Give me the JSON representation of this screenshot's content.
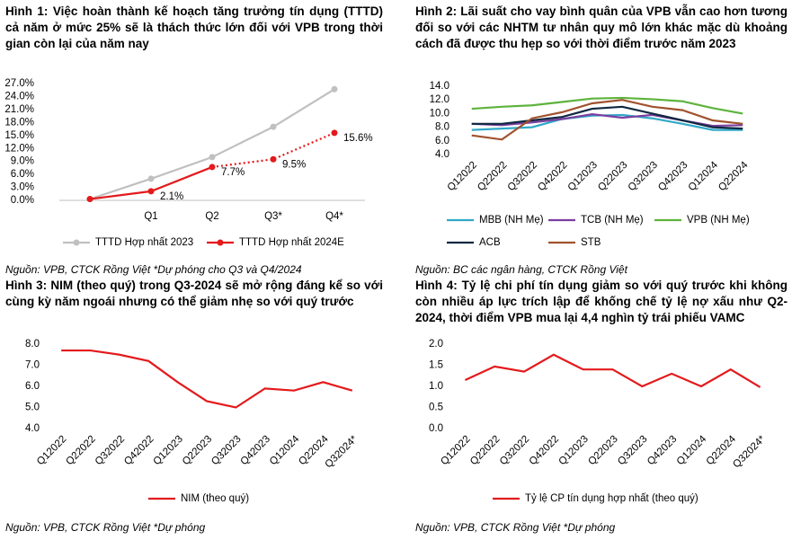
{
  "chart_data": [
    {
      "type": "line",
      "title": "Hình 1: Việc hoàn thành kế hoạch tăng trưởng tín dụng (TTTD) cả năm ở mức 25% sẽ là thách thức lớn đối với VPB trong thời gian còn lại của năm nay",
      "source": "Nguồn: VPB, CTCK Rồng Việt *Dự phóng cho Q3 và Q4/2024",
      "categories": [
        null,
        "Q1",
        "Q2",
        "Q3*",
        "Q4*"
      ],
      "series": [
        {
          "name": "TTTD Hợp nhất 2023",
          "color": "#c0c0c0",
          "values": [
            0.3,
            5.0,
            10.0,
            17.0,
            25.7
          ]
        },
        {
          "name": "TTTD Hợp nhất 2024E",
          "color": "#e31a1c",
          "values": [
            0.3,
            2.1,
            7.7,
            9.5,
            15.6
          ],
          "value_labels": [
            null,
            "2.1%",
            "7.7%",
            "9.5%",
            "15.6%"
          ],
          "dotted_from": 2
        }
      ],
      "ylim": [
        0,
        27
      ],
      "yticks": [
        {
          "value": 0,
          "label": "0.0%"
        },
        {
          "value": 3,
          "label": "3.0%"
        },
        {
          "value": 6,
          "label": "6.0%"
        },
        {
          "value": 9,
          "label": "9.0%"
        },
        {
          "value": 12,
          "label": "12.0%"
        },
        {
          "value": 15,
          "label": "15.0%"
        },
        {
          "value": 18,
          "label": "18.0%"
        },
        {
          "value": 21,
          "label": "21.0%"
        },
        {
          "value": 24,
          "label": "24.0%"
        },
        {
          "value": 27,
          "label": "27.0%"
        }
      ],
      "markers": true
    },
    {
      "type": "line",
      "title": "Hình 2: Lãi suất cho vay bình quân của VPB vẫn cao hơn tương đối so với các NHTM tư nhân quy mô lớn khác mặc dù khoảng cách đã được thu hẹp so với thời điểm trước năm 2023",
      "source": "Nguồn: BC các ngân hàng, CTCK Rồng Việt",
      "categories": [
        "Q12022",
        "Q22022",
        "Q32022",
        "Q42022",
        "Q12023",
        "Q22023",
        "Q32023",
        "Q42023",
        "Q12024",
        "Q22024"
      ],
      "series": [
        {
          "name": "MBB (NH Mẹ)",
          "color": "#31a9c9",
          "values": [
            7.6,
            7.8,
            8.0,
            9.2,
            9.7,
            9.8,
            9.3,
            8.5,
            7.6,
            7.6
          ]
        },
        {
          "name": "TCB (NH Mẹ)",
          "color": "#7a3fa0",
          "values": [
            8.5,
            8.3,
            8.7,
            9.2,
            9.9,
            9.4,
            9.8,
            9.0,
            8.2,
            8.3
          ]
        },
        {
          "name": "VPB (NH Mẹ)",
          "color": "#5db33c",
          "values": [
            10.7,
            11.0,
            11.2,
            11.7,
            12.2,
            12.3,
            12.1,
            11.8,
            10.8,
            10.0
          ]
        },
        {
          "name": "ACB",
          "color": "#0e2841",
          "values": [
            8.5,
            8.5,
            9.0,
            9.5,
            10.7,
            11.0,
            10.0,
            9.0,
            8.0,
            7.8
          ]
        },
        {
          "name": "STB",
          "color": "#a0522d",
          "values": [
            6.8,
            6.2,
            9.3,
            10.2,
            11.5,
            12.0,
            11.0,
            10.5,
            9.0,
            8.5
          ]
        }
      ],
      "ylim": [
        4,
        14
      ],
      "yticks": [
        {
          "value": 4,
          "label": "4.0"
        },
        {
          "value": 6,
          "label": "6.0"
        },
        {
          "value": 8,
          "label": "8.0"
        },
        {
          "value": 10,
          "label": "10.0"
        },
        {
          "value": 12,
          "label": "12.0"
        },
        {
          "value": 14,
          "label": "14.0"
        }
      ]
    },
    {
      "type": "line",
      "title": "Hình 3: NIM (theo quý) trong Q3-2024 sẽ mở rộng đáng kể so với cùng kỳ năm ngoái nhưng có thể giảm nhẹ so với quý trước",
      "source": "Nguồn: VPB, CTCK Rồng Việt *Dự phóng",
      "categories": [
        "Q12022",
        "Q22022",
        "Q32022",
        "Q42022",
        "Q12023",
        "Q22023",
        "Q32023",
        "Q42023",
        "Q12024",
        "Q22024",
        "Q32024*"
      ],
      "series": [
        {
          "name": "NIM (theo quý)",
          "color": "#e31a1c",
          "values": [
            7.7,
            7.7,
            7.5,
            7.2,
            6.2,
            5.3,
            5.0,
            5.9,
            5.8,
            6.2,
            5.8
          ]
        }
      ],
      "ylim": [
        4,
        8
      ],
      "yticks": [
        {
          "value": 4,
          "label": "4.0"
        },
        {
          "value": 5,
          "label": "5.0"
        },
        {
          "value": 6,
          "label": "6.0"
        },
        {
          "value": 7,
          "label": "7.0"
        },
        {
          "value": 8,
          "label": "8.0"
        }
      ]
    },
    {
      "type": "line",
      "title": "Hình 4: Tỷ lệ chi phí tín dụng giảm so với quý trước khi không còn nhiều áp lực trích lập để khống chế tỷ lệ nợ xấu như Q2-2024, thời điểm VPB mua lại 4,4 nghìn tỷ trái phiếu VAMC",
      "source": "Nguồn: VPB, CTCK Rồng Việt *Dự phóng",
      "categories": [
        "Q12022",
        "Q22022",
        "Q32022",
        "Q42022",
        "Q12023",
        "Q22023",
        "Q32023",
        "Q42023",
        "Q12024",
        "Q22024",
        "Q32024*"
      ],
      "series": [
        {
          "name": "Tỷ lệ CP tín dụng hợp nhất (theo quý)",
          "color": "#e31a1c",
          "values": [
            1.15,
            1.47,
            1.35,
            1.75,
            1.4,
            1.4,
            1.0,
            1.3,
            1.0,
            1.4,
            0.98
          ]
        }
      ],
      "ylim": [
        0,
        2
      ],
      "yticks": [
        {
          "value": 0,
          "label": "0.0"
        },
        {
          "value": 0.5,
          "label": "0.5"
        },
        {
          "value": 1,
          "label": "1.0"
        },
        {
          "value": 1.5,
          "label": "1.5"
        },
        {
          "value": 2,
          "label": "2.0"
        }
      ]
    }
  ]
}
